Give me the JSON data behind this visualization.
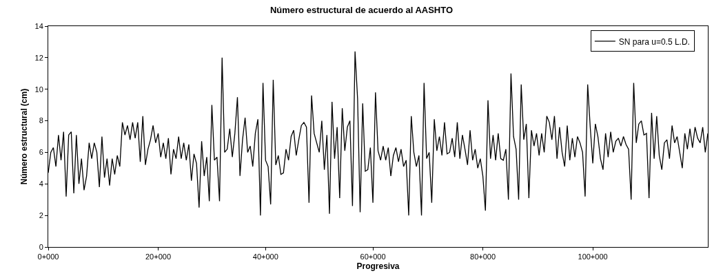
{
  "chart_data": {
    "type": "line",
    "title": "Número estructural de acuerdo al AASHTO",
    "xlabel": "Progresiva",
    "ylabel": "Número estructural (cm)",
    "categories": [
      "0+000",
      null,
      null,
      null,
      null,
      null,
      null,
      null,
      null,
      null,
      null,
      null,
      null,
      null,
      null,
      null,
      null,
      null,
      null,
      null,
      null,
      null,
      null,
      null,
      null,
      null,
      null,
      null,
      null,
      null,
      null,
      null,
      null,
      null,
      null,
      null,
      null,
      null,
      null,
      null,
      null,
      null,
      null,
      "20+000",
      null,
      null,
      null,
      null,
      null,
      null,
      null,
      null,
      null,
      null,
      null,
      null,
      null,
      null,
      null,
      null,
      null,
      null,
      null,
      null,
      null,
      null,
      null,
      null,
      null,
      null,
      null,
      null,
      null,
      null,
      null,
      null,
      null,
      null,
      null,
      null,
      null,
      null,
      null,
      null,
      null,
      "40+000",
      null,
      null,
      null,
      null,
      null,
      null,
      null,
      null,
      null,
      null,
      null,
      null,
      null,
      null,
      null,
      null,
      null,
      null,
      null,
      null,
      null,
      null,
      null,
      null,
      null,
      null,
      null,
      null,
      null,
      null,
      null,
      null,
      null,
      null,
      null,
      null,
      null,
      null,
      null,
      null,
      null,
      "60+000",
      null,
      null,
      null,
      null,
      null,
      null,
      null,
      null,
      null,
      null,
      null,
      null,
      null,
      null,
      null,
      null,
      null,
      null,
      null,
      null,
      null,
      null,
      null,
      null,
      null,
      null,
      null,
      null,
      null,
      null,
      null,
      null,
      null,
      null,
      null,
      null,
      null,
      null,
      null,
      null,
      null,
      null,
      "80+000",
      null,
      null,
      null,
      null,
      null,
      null,
      null,
      null,
      null,
      null,
      null,
      null,
      null,
      null,
      null,
      null,
      null,
      null,
      null,
      null,
      null,
      null,
      null,
      null,
      null,
      null,
      null,
      null,
      null,
      null,
      null,
      null,
      null,
      null,
      null,
      null,
      null,
      null,
      null,
      null,
      null,
      null,
      "100+000",
      null,
      null,
      null,
      null,
      null,
      null,
      null,
      null,
      null,
      null,
      null,
      null,
      null,
      null,
      null,
      null,
      null,
      null,
      null,
      null,
      null,
      null,
      null,
      null,
      null,
      null,
      null,
      null,
      null,
      null,
      null,
      null,
      null,
      null,
      null,
      null,
      null,
      null,
      null,
      null,
      null,
      null,
      null,
      null,
      null
    ],
    "ylim": [
      0,
      14
    ],
    "yticks": [
      0,
      2,
      4,
      6,
      8,
      10,
      12,
      14
    ],
    "legend": "top right",
    "marker": "none",
    "line_style": "solid",
    "series": [
      {
        "name": "SN para u=0.5 L.D.",
        "color": "#000000",
        "values": [
          4.7,
          6.0,
          6.3,
          5.1,
          7.1,
          5.5,
          7.3,
          3.2,
          7.1,
          7.3,
          3.4,
          7.1,
          4.0,
          5.6,
          3.6,
          4.5,
          6.6,
          5.6,
          6.6,
          6.0,
          3.8,
          7.0,
          4.4,
          5.6,
          3.9,
          5.6,
          4.6,
          5.8,
          5.1,
          7.9,
          7.1,
          7.7,
          6.8,
          7.9,
          6.9,
          7.9,
          5.4,
          8.3,
          5.2,
          6.2,
          6.8,
          7.7,
          6.6,
          7.2,
          5.7,
          6.6,
          5.6,
          6.9,
          4.6,
          6.2,
          5.6,
          7.0,
          5.6,
          6.6,
          5.5,
          6.5,
          4.2,
          5.9,
          5.3,
          2.5,
          6.7,
          4.5,
          5.7,
          2.9,
          9.0,
          5.5,
          5.7,
          2.9,
          12.0,
          6.0,
          6.2,
          7.5,
          5.7,
          7.2,
          9.5,
          4.5,
          6.8,
          8.2,
          6.0,
          6.4,
          5.1,
          7.2,
          8.1,
          2.0,
          10.4,
          5.5,
          5.1,
          2.7,
          10.6,
          5.2,
          5.8,
          4.6,
          4.7,
          6.2,
          5.5,
          7.0,
          7.4,
          5.8,
          6.8,
          7.7,
          7.9,
          7.6,
          2.8,
          9.6,
          7.2,
          6.6,
          6.0,
          8.0,
          4.9,
          7.1,
          2.1,
          9.2,
          5.6,
          7.6,
          3.1,
          8.8,
          6.1,
          7.6,
          8.0,
          2.6,
          12.4,
          9.4,
          2.2,
          9.1,
          4.8,
          4.9,
          6.3,
          2.8,
          9.8,
          6.1,
          5.5,
          6.4,
          5.5,
          6.3,
          4.5,
          5.8,
          6.3,
          5.4,
          6.2,
          5.1,
          5.5,
          2.0,
          8.3,
          6.0,
          5.1,
          5.8,
          2.0,
          10.4,
          5.6,
          6.0,
          2.8,
          8.1,
          6.1,
          7.0,
          5.8,
          7.9,
          5.9,
          6.0,
          6.9,
          5.7,
          7.9,
          5.6,
          7.1,
          6.2,
          5.2,
          7.4,
          5.5,
          6.2,
          5.0,
          5.6,
          4.5,
          2.3,
          9.3,
          5.6,
          7.1,
          5.5,
          7.2,
          5.6,
          5.5,
          6.2,
          3.0,
          11.0,
          7.0,
          6.2,
          3.0,
          10.3,
          6.8,
          7.8,
          3.1,
          7.4,
          6.4,
          7.2,
          5.8,
          7.2,
          6.0,
          8.3,
          7.9,
          6.8,
          8.3,
          5.6,
          7.6,
          6.0,
          5.1,
          7.7,
          5.5,
          6.9,
          5.7,
          7.0,
          6.6,
          6.0,
          3.2,
          10.3,
          7.6,
          5.3,
          7.8,
          7.0,
          5.6,
          4.9,
          7.2,
          5.7,
          7.3,
          6.0,
          6.7,
          6.9,
          6.4,
          7.0,
          6.5,
          6.2,
          3.0,
          10.4,
          6.6,
          7.8,
          8.0,
          7.1,
          7.2,
          3.1,
          8.5,
          5.6,
          8.3,
          5.8,
          4.9,
          6.6,
          6.8,
          5.6,
          7.7,
          6.6,
          7.0,
          6.0,
          5.0,
          7.2,
          6.2,
          7.5,
          6.3,
          7.6,
          6.9,
          6.6,
          7.6,
          6.0,
          7.2
        ]
      }
    ]
  }
}
